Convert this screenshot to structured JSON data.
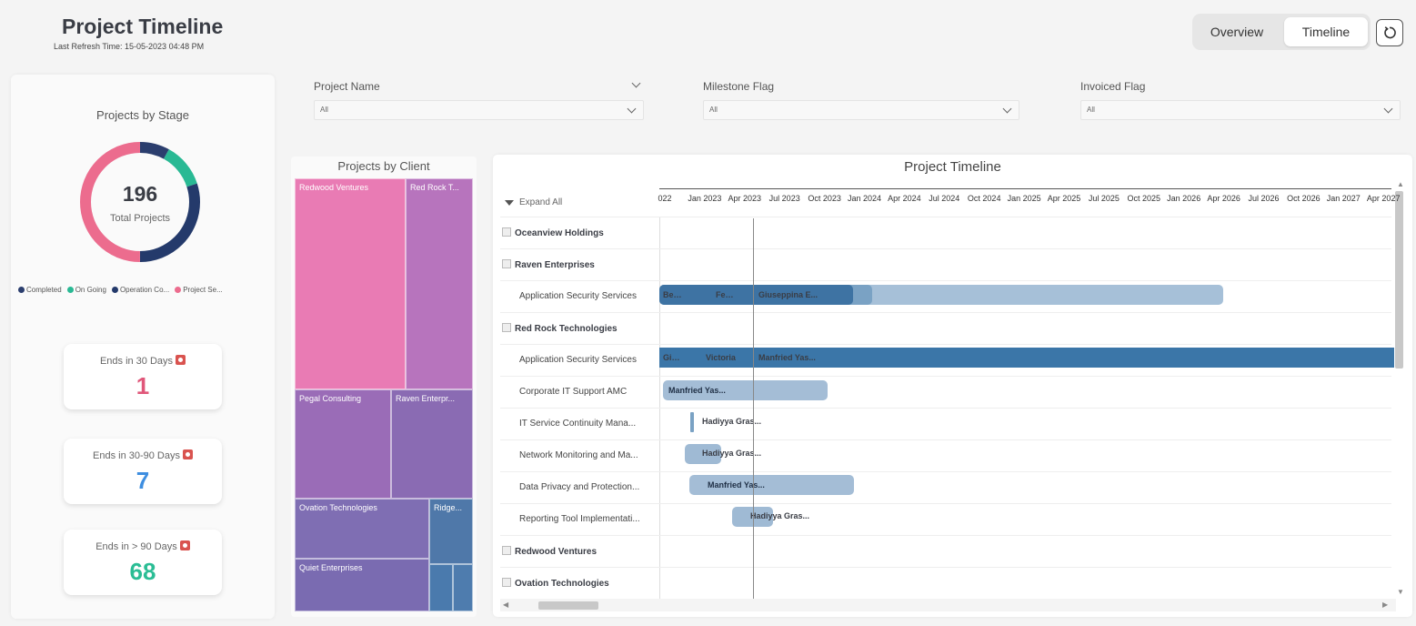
{
  "header": {
    "title": "Project Timeline",
    "refresh": "Last Refresh Time: 15-05-2023 04:48 PM"
  },
  "nav": {
    "overview": "Overview",
    "timeline": "Timeline"
  },
  "stage_panel": {
    "title": "Projects by Stage",
    "total_value": "196",
    "total_label": "Total Projects",
    "legend": [
      {
        "label": "Completed",
        "color": "#2b3e6e"
      },
      {
        "label": "On Going",
        "color": "#29b994"
      },
      {
        "label": "Operation Co...",
        "color": "#243a6b"
      },
      {
        "label": "Project Se...",
        "color": "#ec6c8e"
      }
    ],
    "donut": [
      {
        "stage": "Completed",
        "fraction": 0.08,
        "color": "#2b3e6e"
      },
      {
        "stage": "On Going",
        "fraction": 0.12,
        "color": "#29b994"
      },
      {
        "stage": "Operation Co...",
        "fraction": 0.3,
        "color": "#243a6b"
      },
      {
        "stage": "Project Se...",
        "fraction": 0.5,
        "color": "#ec6c8e"
      }
    ]
  },
  "kpis": [
    {
      "label": "Ends in 30 Days",
      "value": "1",
      "color": "#e0577a"
    },
    {
      "label": "Ends in 30-90 Days",
      "value": "7",
      "color": "#3e8ee0"
    },
    {
      "label": "Ends in > 90 Days",
      "value": "68",
      "color": "#2bbd95"
    }
  ],
  "filters": [
    {
      "label": "Project Name",
      "value": "All"
    },
    {
      "label": "Milestone Flag",
      "value": "All"
    },
    {
      "label": "Invoiced Flag",
      "value": "All"
    }
  ],
  "treemap": {
    "title": "Projects by Client",
    "labels": {
      "redwood": "Redwood Ventures",
      "redrock": "Red Rock T...",
      "pegal": "Pegal Consulting",
      "raven": "Raven Enterpr...",
      "ovation": "Ovation Technologies",
      "ridge": "Ridge...",
      "quiet": "Quiet Enterprises"
    }
  },
  "timeline": {
    "title": "Project Timeline",
    "expand_all": "Expand All",
    "ticks": [
      "022",
      "Jan 2023",
      "Apr 2023",
      "Jul 2023",
      "Oct 2023",
      "Jan 2024",
      "Apr 2024",
      "Jul 2024",
      "Oct 2024",
      "Jan 2025",
      "Apr 2025",
      "Jul 2025",
      "Oct 2025",
      "Jan 2026",
      "Apr 2026",
      "Jul 2026",
      "Oct 2026",
      "Jan 2027",
      "Apr 2027"
    ],
    "rows": {
      "r0": "Oceanview Holdings",
      "r1": "Raven Enterprises",
      "r2": "Application Security Services",
      "r3": "Red Rock Technologies",
      "r4": "Application Security Services",
      "r5": "Corporate IT Support AMC",
      "r6": "IT Service Continuity Mana...",
      "r7": "Network Monitoring and Ma...",
      "r8": "Data Privacy and Protection...",
      "r9": "Reporting Tool Implementati...",
      "r10": "Redwood Ventures",
      "r11": "Ovation Technologies"
    },
    "bars": {
      "b2a": "Be…",
      "b2b": "Fe…",
      "b2c": "Giuseppina E...",
      "b4a": "Gi…",
      "b4b": "Victoria",
      "b4c": "Manfried Yas...",
      "b5": "Manfried Yas...",
      "b6": "Hadiyya Gras...",
      "b7": "Hadiyya Gras...",
      "b8": "Manfried Yas...",
      "b9": "Hadiyya Gras..."
    }
  }
}
